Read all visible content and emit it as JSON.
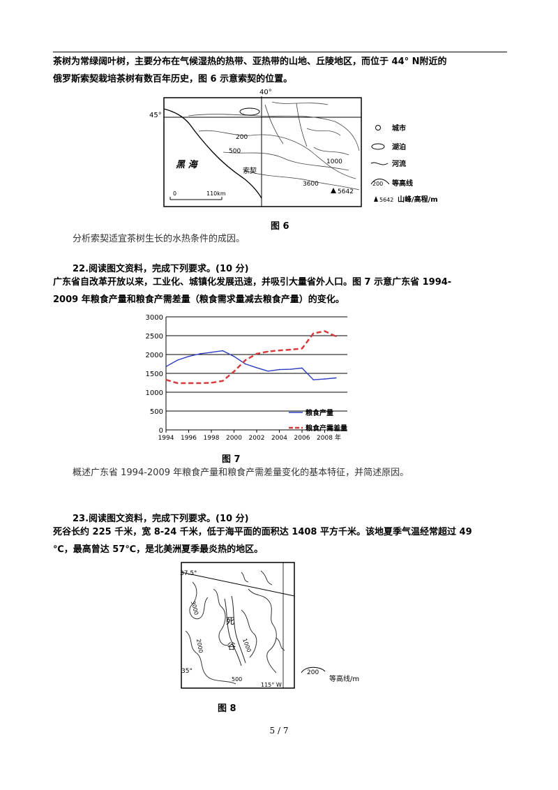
{
  "intro": {
    "line1": "茶树为常绿阔叶树，主要分布在气候湿热的热带、亚热带的山地、丘陵地区，而位于 44° N附近的",
    "line2": "俄罗斯索契栽培茶树有数百年历史，图 6 示意索契的位置。"
  },
  "fig6": {
    "lon_label": "40°",
    "lat_label": "45°",
    "sea_label": "黑 海",
    "city_label": "索契",
    "contours": [
      "200",
      "500",
      "1000",
      "3600"
    ],
    "peak_value": "5642",
    "scale_zero": "0",
    "scale_end": "110km",
    "legend": [
      {
        "icon": "city-icon",
        "label": "城市"
      },
      {
        "icon": "lake-icon",
        "label": "湖泊"
      },
      {
        "icon": "river-icon",
        "label": "河流"
      },
      {
        "icon": "contour-icon",
        "value": "200",
        "label": "等高线"
      },
      {
        "icon": "peak-icon",
        "value": "5642",
        "label": "山峰/高程/m"
      }
    ],
    "caption": "图 6"
  },
  "q21_prompt": "分析索契适宜茶树生长的水热条件的成因。",
  "q22": {
    "title": "22.阅读图文资料，完成下列要求。(10 分)",
    "text1": "广东省自改革开放以来，工业化、城镇化发展迅速，并吸引大量省外人口。图 7 示意广东省 1994-",
    "text2": "2009 年粮食产量和粮食产需差量（粮食需求量减去粮食产量）的变化。",
    "caption": "图 7",
    "prompt": "概述广东省 1994-2009 年粮食产量和粮食产需差量变化的基本特征，并简述原因。"
  },
  "chart_data": {
    "type": "line",
    "x_tick_labels": [
      "1994",
      "1996",
      "1998",
      "2000",
      "2002",
      "2004",
      "2006",
      "2008"
    ],
    "x_unit": "年",
    "y_tick_labels": [
      "0",
      "500",
      "1000",
      "1500",
      "2000",
      "2500",
      "3000"
    ],
    "ylim": [
      0,
      3000
    ],
    "xlim": [
      1994,
      2010
    ],
    "grid": true,
    "legend_position": "bottom-right",
    "series": [
      {
        "name": "粮食产量",
        "color": "#2b3bbf",
        "dash": "solid",
        "x": [
          1994,
          1995,
          1996,
          1997,
          1998,
          1999,
          2000,
          2001,
          2002,
          2003,
          2004,
          2005,
          2006,
          2007,
          2008,
          2009
        ],
        "values": [
          1680,
          1850,
          1950,
          2020,
          2060,
          2100,
          1950,
          1750,
          1650,
          1560,
          1600,
          1610,
          1640,
          1330,
          1350,
          1380
        ]
      },
      {
        "name": "粮食产需差量",
        "color": "#d63a3a",
        "dash": "dashed",
        "x": [
          1994,
          1995,
          1996,
          1997,
          1998,
          1999,
          2000,
          2001,
          2002,
          2003,
          2004,
          2005,
          2006,
          2007,
          2008,
          2009
        ],
        "values": [
          1330,
          1240,
          1240,
          1240,
          1250,
          1300,
          1550,
          1850,
          2020,
          2080,
          2110,
          2130,
          2160,
          2560,
          2620,
          2480
        ]
      }
    ]
  },
  "q23": {
    "title": "23.阅读图文资料，完成下列要求。(10 分)",
    "text1": "死谷长约 225 千米，宽 8-24 千米，低于海平面的面积达 1408 平方千米。该地夏季气温经常超过 49",
    "text2": "℃，最高曾达 57℃，是北美洲夏季最炎热的地区。",
    "fig8": {
      "lat_top": "37.5°",
      "lat_bottom": "35°",
      "lon_label": "115° W",
      "valley_label_1": "死",
      "valley_label_2": "谷",
      "contours": [
        "3000",
        "2000",
        "1000",
        "500"
      ],
      "legend_value": "200",
      "legend_text": "等高线/m"
    },
    "caption": "图 8"
  },
  "page_number": "5 / 7"
}
